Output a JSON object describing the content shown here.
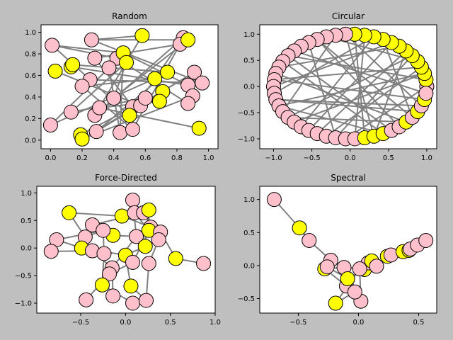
{
  "chart_data": [
    {
      "type": "network",
      "title": "Random",
      "x": [
        0.01,
        0.26,
        0.84,
        0.82,
        0.28,
        0.42,
        0.37,
        0.25,
        0.2,
        0.13,
        0.0,
        0.28,
        0.31,
        0.29,
        0.44,
        0.52,
        0.4,
        0.52,
        0.57,
        0.6,
        0.91,
        0.96,
        0.87,
        0.9,
        0.87,
        0.58,
        0.87,
        0.03,
        0.13,
        0.14,
        0.46,
        0.48,
        0.66,
        0.74,
        0.71,
        0.69,
        0.5,
        0.19,
        0.2,
        0.94
      ],
      "y": [
        0.88,
        0.93,
        0.95,
        0.89,
        0.76,
        0.76,
        0.67,
        0.56,
        0.5,
        0.26,
        0.14,
        0.23,
        0.3,
        0.08,
        0.07,
        0.1,
        0.39,
        0.31,
        0.32,
        0.39,
        0.63,
        0.53,
        0.51,
        0.41,
        0.34,
        0.97,
        0.93,
        0.64,
        0.68,
        0.7,
        0.81,
        0.72,
        0.57,
        0.63,
        0.45,
        0.36,
        0.23,
        0.05,
        0.01,
        0.11
      ],
      "node_colors": [
        "#ffc0cb",
        "#ffc0cb",
        "#ffc0cb",
        "#ffc0cb",
        "#ffc0cb",
        "#ffc0cb",
        "#ffc0cb",
        "#ffc0cb",
        "#ffc0cb",
        "#ffc0cb",
        "#ffc0cb",
        "#ffc0cb",
        "#ffc0cb",
        "#ffc0cb",
        "#ffc0cb",
        "#ffc0cb",
        "#ffc0cb",
        "#ffc0cb",
        "#ffc0cb",
        "#ffc0cb",
        "#ffc0cb",
        "#ffc0cb",
        "#ffc0cb",
        "#ffc0cb",
        "#ffc0cb",
        "#ffff00",
        "#ffff00",
        "#ffff00",
        "#ffff00",
        "#ffff00",
        "#ffff00",
        "#ffff00",
        "#ffff00",
        "#ffff00",
        "#ffff00",
        "#ffff00",
        "#ffff00",
        "#ffff00",
        "#ffff00",
        "#ffff00"
      ],
      "edges": [
        [
          0,
          30
        ],
        [
          0,
          5
        ],
        [
          1,
          25
        ],
        [
          1,
          26
        ],
        [
          4,
          3
        ],
        [
          27,
          18
        ],
        [
          28,
          22
        ],
        [
          29,
          33
        ],
        [
          7,
          21
        ],
        [
          8,
          32
        ],
        [
          9,
          31
        ],
        [
          10,
          6
        ],
        [
          11,
          2
        ],
        [
          12,
          39
        ],
        [
          13,
          20
        ],
        [
          14,
          30
        ],
        [
          15,
          3
        ],
        [
          16,
          26
        ],
        [
          17,
          4
        ],
        [
          19,
          9
        ],
        [
          36,
          0
        ],
        [
          37,
          34
        ],
        [
          38,
          23
        ],
        [
          24,
          5
        ],
        [
          35,
          12
        ],
        [
          30,
          22
        ],
        [
          31,
          16
        ],
        [
          6,
          14
        ],
        [
          8,
          15
        ],
        [
          11,
          25
        ],
        [
          33,
          13
        ],
        [
          32,
          10
        ],
        [
          2,
          36
        ],
        [
          21,
          1
        ],
        [
          20,
          38
        ]
      ],
      "edge_color": "#808080",
      "xlim": [
        -0.06,
        1.06
      ],
      "ylim": [
        -0.08,
        1.07
      ],
      "xticks": [
        {
          "value": 0,
          "label": "0.0"
        },
        {
          "value": 0.2,
          "label": "0.2"
        },
        {
          "value": 0.4,
          "label": "0.4"
        },
        {
          "value": 0.6,
          "label": "0.6"
        },
        {
          "value": 0.8,
          "label": "0.8"
        },
        {
          "value": 1,
          "label": "1.0"
        }
      ],
      "yticks": [
        {
          "value": 0,
          "label": "0.0"
        },
        {
          "value": 0.2,
          "label": "0.2"
        },
        {
          "value": 0.4,
          "label": "0.4"
        },
        {
          "value": 0.6,
          "label": "0.6"
        },
        {
          "value": 0.8,
          "label": "0.8"
        },
        {
          "value": 1,
          "label": "1.0"
        }
      ]
    },
    {
      "type": "network",
      "title": "Circular",
      "x": [
        1.0,
        0.99,
        0.97,
        0.93,
        0.88,
        0.81,
        0.73,
        0.64,
        0.54,
        0.43,
        0.31,
        0.19,
        0.06,
        -0.06,
        -0.19,
        -0.31,
        -0.43,
        -0.54,
        -0.64,
        -0.73,
        -0.81,
        -0.88,
        -0.93,
        -0.97,
        -0.99,
        -1.0,
        -0.99,
        -0.97,
        -0.93,
        -0.88,
        -0.81,
        -0.73,
        -0.64,
        -0.54,
        -0.43,
        -0.31,
        -0.19,
        -0.06,
        0.06,
        0.19,
        0.31,
        0.43,
        0.54,
        0.64,
        0.73,
        0.81,
        0.88,
        0.93,
        0.97,
        0.99
      ],
      "y": [
        0.0,
        0.13,
        0.25,
        0.37,
        0.48,
        0.59,
        0.68,
        0.77,
        0.84,
        0.9,
        0.95,
        0.98,
        1.0,
        1.0,
        0.98,
        0.95,
        0.9,
        0.84,
        0.77,
        0.68,
        0.59,
        0.48,
        0.37,
        0.25,
        0.13,
        0.0,
        -0.13,
        -0.25,
        -0.37,
        -0.48,
        -0.59,
        -0.68,
        -0.77,
        -0.84,
        -0.9,
        -0.95,
        -0.98,
        -1.0,
        -1.0,
        -0.98,
        -0.95,
        -0.9,
        -0.84,
        -0.77,
        -0.68,
        -0.59,
        -0.48,
        -0.37,
        -0.25,
        -0.13
      ],
      "node_colors": [
        "#ffc0cb",
        "#ffff00",
        "#ffff00",
        "#ffff00",
        "#ffff00",
        "#ffff00",
        "#ffff00",
        "#ffff00",
        "#ffff00",
        "#ffff00",
        "#ffff00",
        "#ffff00",
        "#ffff00",
        "#ffc0cb",
        "#ffc0cb",
        "#ffc0cb",
        "#ffc0cb",
        "#ffc0cb",
        "#ffc0cb",
        "#ffc0cb",
        "#ffc0cb",
        "#ffc0cb",
        "#ffc0cb",
        "#ffc0cb",
        "#ffc0cb",
        "#ffc0cb",
        "#ffc0cb",
        "#ffc0cb",
        "#ffc0cb",
        "#ffc0cb",
        "#ffc0cb",
        "#ffc0cb",
        "#ffc0cb",
        "#ffc0cb",
        "#ffc0cb",
        "#ffc0cb",
        "#ffc0cb",
        "#ffc0cb",
        "#ffc0cb",
        "#ffff00",
        "#ffff00",
        "#ffff00",
        "#ffc0cb",
        "#ffc0cb",
        "#ffff00",
        "#ffc0cb",
        "#ffff00",
        "#ffc0cb",
        "#ffff00",
        "#ffc0cb"
      ],
      "edges": [
        [
          1,
          20
        ],
        [
          2,
          28
        ],
        [
          3,
          35
        ],
        [
          4,
          15
        ],
        [
          5,
          30
        ],
        [
          6,
          40
        ],
        [
          7,
          22
        ],
        [
          8,
          33
        ],
        [
          9,
          45
        ],
        [
          10,
          26
        ],
        [
          11,
          38
        ],
        [
          12,
          18
        ],
        [
          13,
          47
        ],
        [
          14,
          29
        ],
        [
          16,
          43
        ],
        [
          17,
          36
        ],
        [
          19,
          49
        ],
        [
          21,
          41
        ],
        [
          23,
          44
        ],
        [
          24,
          3
        ],
        [
          25,
          8
        ],
        [
          27,
          46
        ],
        [
          31,
          2
        ],
        [
          32,
          10
        ],
        [
          34,
          6
        ],
        [
          37,
          0
        ],
        [
          39,
          12
        ],
        [
          42,
          20
        ],
        [
          48,
          24
        ],
        [
          44,
          30
        ],
        [
          45,
          16
        ],
        [
          47,
          27
        ],
        [
          40,
          13
        ],
        [
          36,
          5
        ],
        [
          41,
          28
        ]
      ],
      "edge_color": "#808080",
      "xlim": [
        -1.18,
        1.13
      ],
      "ylim": [
        -1.19,
        1.18
      ],
      "xticks": [
        {
          "value": -1,
          "label": "−1.0"
        },
        {
          "value": -0.5,
          "label": "−0.5"
        },
        {
          "value": 0,
          "label": "0.0"
        },
        {
          "value": 0.5,
          "label": "0.5"
        },
        {
          "value": 1,
          "label": "1.0"
        }
      ],
      "yticks": [
        {
          "value": -1,
          "label": "−1.0"
        },
        {
          "value": -0.5,
          "label": "−0.5"
        },
        {
          "value": 0,
          "label": "0.0"
        },
        {
          "value": 0.5,
          "label": "0.5"
        },
        {
          "value": 1,
          "label": "1.0"
        }
      ]
    },
    {
      "type": "network",
      "title": "Force-Directed",
      "x": [
        -0.63,
        0.08,
        -0.37,
        -0.77,
        -0.83,
        -0.45,
        -0.49,
        -0.14,
        -0.04,
        0.1,
        0.2,
        0.26,
        0.28,
        -0.25,
        0.26,
        0.12,
        0.39,
        0.37,
        0.22,
        -0.37,
        -0.24,
        0.0,
        0.08,
        -0.15,
        -0.18,
        0.26,
        0.56,
        0.87,
        -0.26,
        0.06,
        -0.14,
        -0.44,
        0.08,
        0.23
      ],
      "y": [
        0.64,
        0.87,
        0.42,
        0.15,
        -0.06,
        0.2,
        0.0,
        0.23,
        0.58,
        0.64,
        0.64,
        0.69,
        0.38,
        0.32,
        0.32,
        0.21,
        0.29,
        0.15,
        0.03,
        -0.05,
        -0.1,
        -0.13,
        -0.26,
        -0.36,
        -0.47,
        -0.28,
        -0.19,
        -0.28,
        -0.67,
        -0.69,
        -0.87,
        -0.94,
        -1.0,
        -0.95
      ],
      "node_colors": [
        "#ffff00",
        "#ffc0cb",
        "#ffc0cb",
        "#ffc0cb",
        "#ffc0cb",
        "#ffc0cb",
        "#ffff00",
        "#ffff00",
        "#ffff00",
        "#ffc0cb",
        "#ffc0cb",
        "#ffff00",
        "#ffc0cb",
        "#ffc0cb",
        "#ffff00",
        "#ffc0cb",
        "#ffc0cb",
        "#ffc0cb",
        "#ffff00",
        "#ffc0cb",
        "#ffc0cb",
        "#ffff00",
        "#ffc0cb",
        "#ffc0cb",
        "#ffc0cb",
        "#ffc0cb",
        "#ffff00",
        "#ffc0cb",
        "#ffff00",
        "#ffff00",
        "#ffc0cb",
        "#ffc0cb",
        "#ffc0cb",
        "#ffc0cb"
      ],
      "edges": [
        [
          0,
          5
        ],
        [
          0,
          8
        ],
        [
          1,
          9
        ],
        [
          1,
          15
        ],
        [
          2,
          7
        ],
        [
          3,
          6
        ],
        [
          4,
          19
        ],
        [
          5,
          13
        ],
        [
          6,
          21
        ],
        [
          7,
          15
        ],
        [
          8,
          12
        ],
        [
          9,
          14
        ],
        [
          10,
          16
        ],
        [
          11,
          18
        ],
        [
          12,
          22
        ],
        [
          13,
          20
        ],
        [
          14,
          17
        ],
        [
          16,
          26
        ],
        [
          17,
          25
        ],
        [
          18,
          21
        ],
        [
          19,
          23
        ],
        [
          20,
          28
        ],
        [
          21,
          29
        ],
        [
          22,
          24
        ],
        [
          23,
          30
        ],
        [
          24,
          31
        ],
        [
          25,
          33
        ],
        [
          26,
          27
        ],
        [
          28,
          32
        ],
        [
          29,
          33
        ],
        [
          2,
          10
        ],
        [
          3,
          13
        ],
        [
          15,
          23
        ]
      ],
      "edge_color": "#808080",
      "xlim": [
        -0.99,
        1.0
      ],
      "ylim": [
        -1.18,
        1.12
      ],
      "xticks": [
        {
          "value": -0.5,
          "label": "−0.5"
        },
        {
          "value": 0,
          "label": "0.0"
        },
        {
          "value": 0.5,
          "label": "0.5"
        },
        {
          "value": 1,
          "label": "1.0"
        }
      ],
      "yticks": [
        {
          "value": -1,
          "label": "−1.0"
        },
        {
          "value": -0.5,
          "label": "−0.5"
        },
        {
          "value": 0,
          "label": "0.0"
        },
        {
          "value": 0.5,
          "label": "0.5"
        },
        {
          "value": 1,
          "label": "1.0"
        }
      ]
    },
    {
      "type": "network",
      "title": "Spectral",
      "x": [
        -0.7,
        -0.49,
        -0.41,
        -0.23,
        -0.28,
        -0.26,
        -0.12,
        -0.1,
        -0.09,
        -0.19,
        0.02,
        -0.03,
        0.05,
        0.08,
        0.11,
        0.15,
        0.01,
        0.24,
        0.27,
        0.37,
        0.42,
        0.43,
        0.49,
        0.56
      ],
      "y": [
        1.0,
        0.57,
        0.38,
        0.08,
        -0.05,
        -0.02,
        -0.03,
        -0.31,
        -0.2,
        -0.57,
        -0.54,
        -0.4,
        -0.06,
        0.04,
        0.07,
        -0.01,
        -0.05,
        0.14,
        0.16,
        0.21,
        0.23,
        0.25,
        0.31,
        0.38
      ],
      "node_colors": [
        "#ffc0cb",
        "#ffff00",
        "#ffc0cb",
        "#ffc0cb",
        "#ffff00",
        "#ffc0cb",
        "#ffc0cb",
        "#ffc0cb",
        "#ffff00",
        "#ffff00",
        "#ffc0cb",
        "#ffc0cb",
        "#ffff00",
        "#ffc0cb",
        "#ffff00",
        "#ffc0cb",
        "#ffc0cb",
        "#ffff00",
        "#ffc0cb",
        "#ffff00",
        "#ffff00",
        "#ffc0cb",
        "#ffc0cb",
        "#ffc0cb"
      ],
      "edges": [
        [
          0,
          1
        ],
        [
          1,
          2
        ],
        [
          2,
          3
        ],
        [
          3,
          5
        ],
        [
          4,
          6
        ],
        [
          5,
          8
        ],
        [
          6,
          16
        ],
        [
          7,
          11
        ],
        [
          8,
          12
        ],
        [
          9,
          11
        ],
        [
          10,
          16
        ],
        [
          11,
          6
        ],
        [
          12,
          13
        ],
        [
          13,
          14
        ],
        [
          14,
          15
        ],
        [
          15,
          17
        ],
        [
          17,
          18
        ],
        [
          18,
          19
        ],
        [
          19,
          20
        ],
        [
          20,
          21
        ],
        [
          21,
          22
        ],
        [
          22,
          23
        ],
        [
          4,
          7
        ],
        [
          9,
          16
        ],
        [
          12,
          15
        ],
        [
          3,
          6
        ]
      ],
      "edge_color": "#808080",
      "xlim": [
        -0.82,
        0.65
      ],
      "ylim": [
        -0.72,
        1.2
      ],
      "xticks": [
        {
          "value": -0.5,
          "label": "−0.5"
        },
        {
          "value": 0,
          "label": "0.0"
        },
        {
          "value": 0.5,
          "label": "0.5"
        }
      ],
      "yticks": [
        {
          "value": -0.5,
          "label": "−0.5"
        },
        {
          "value": 0,
          "label": "0.0"
        },
        {
          "value": 0.5,
          "label": "0.5"
        },
        {
          "value": 1,
          "label": "1.0"
        }
      ]
    }
  ]
}
